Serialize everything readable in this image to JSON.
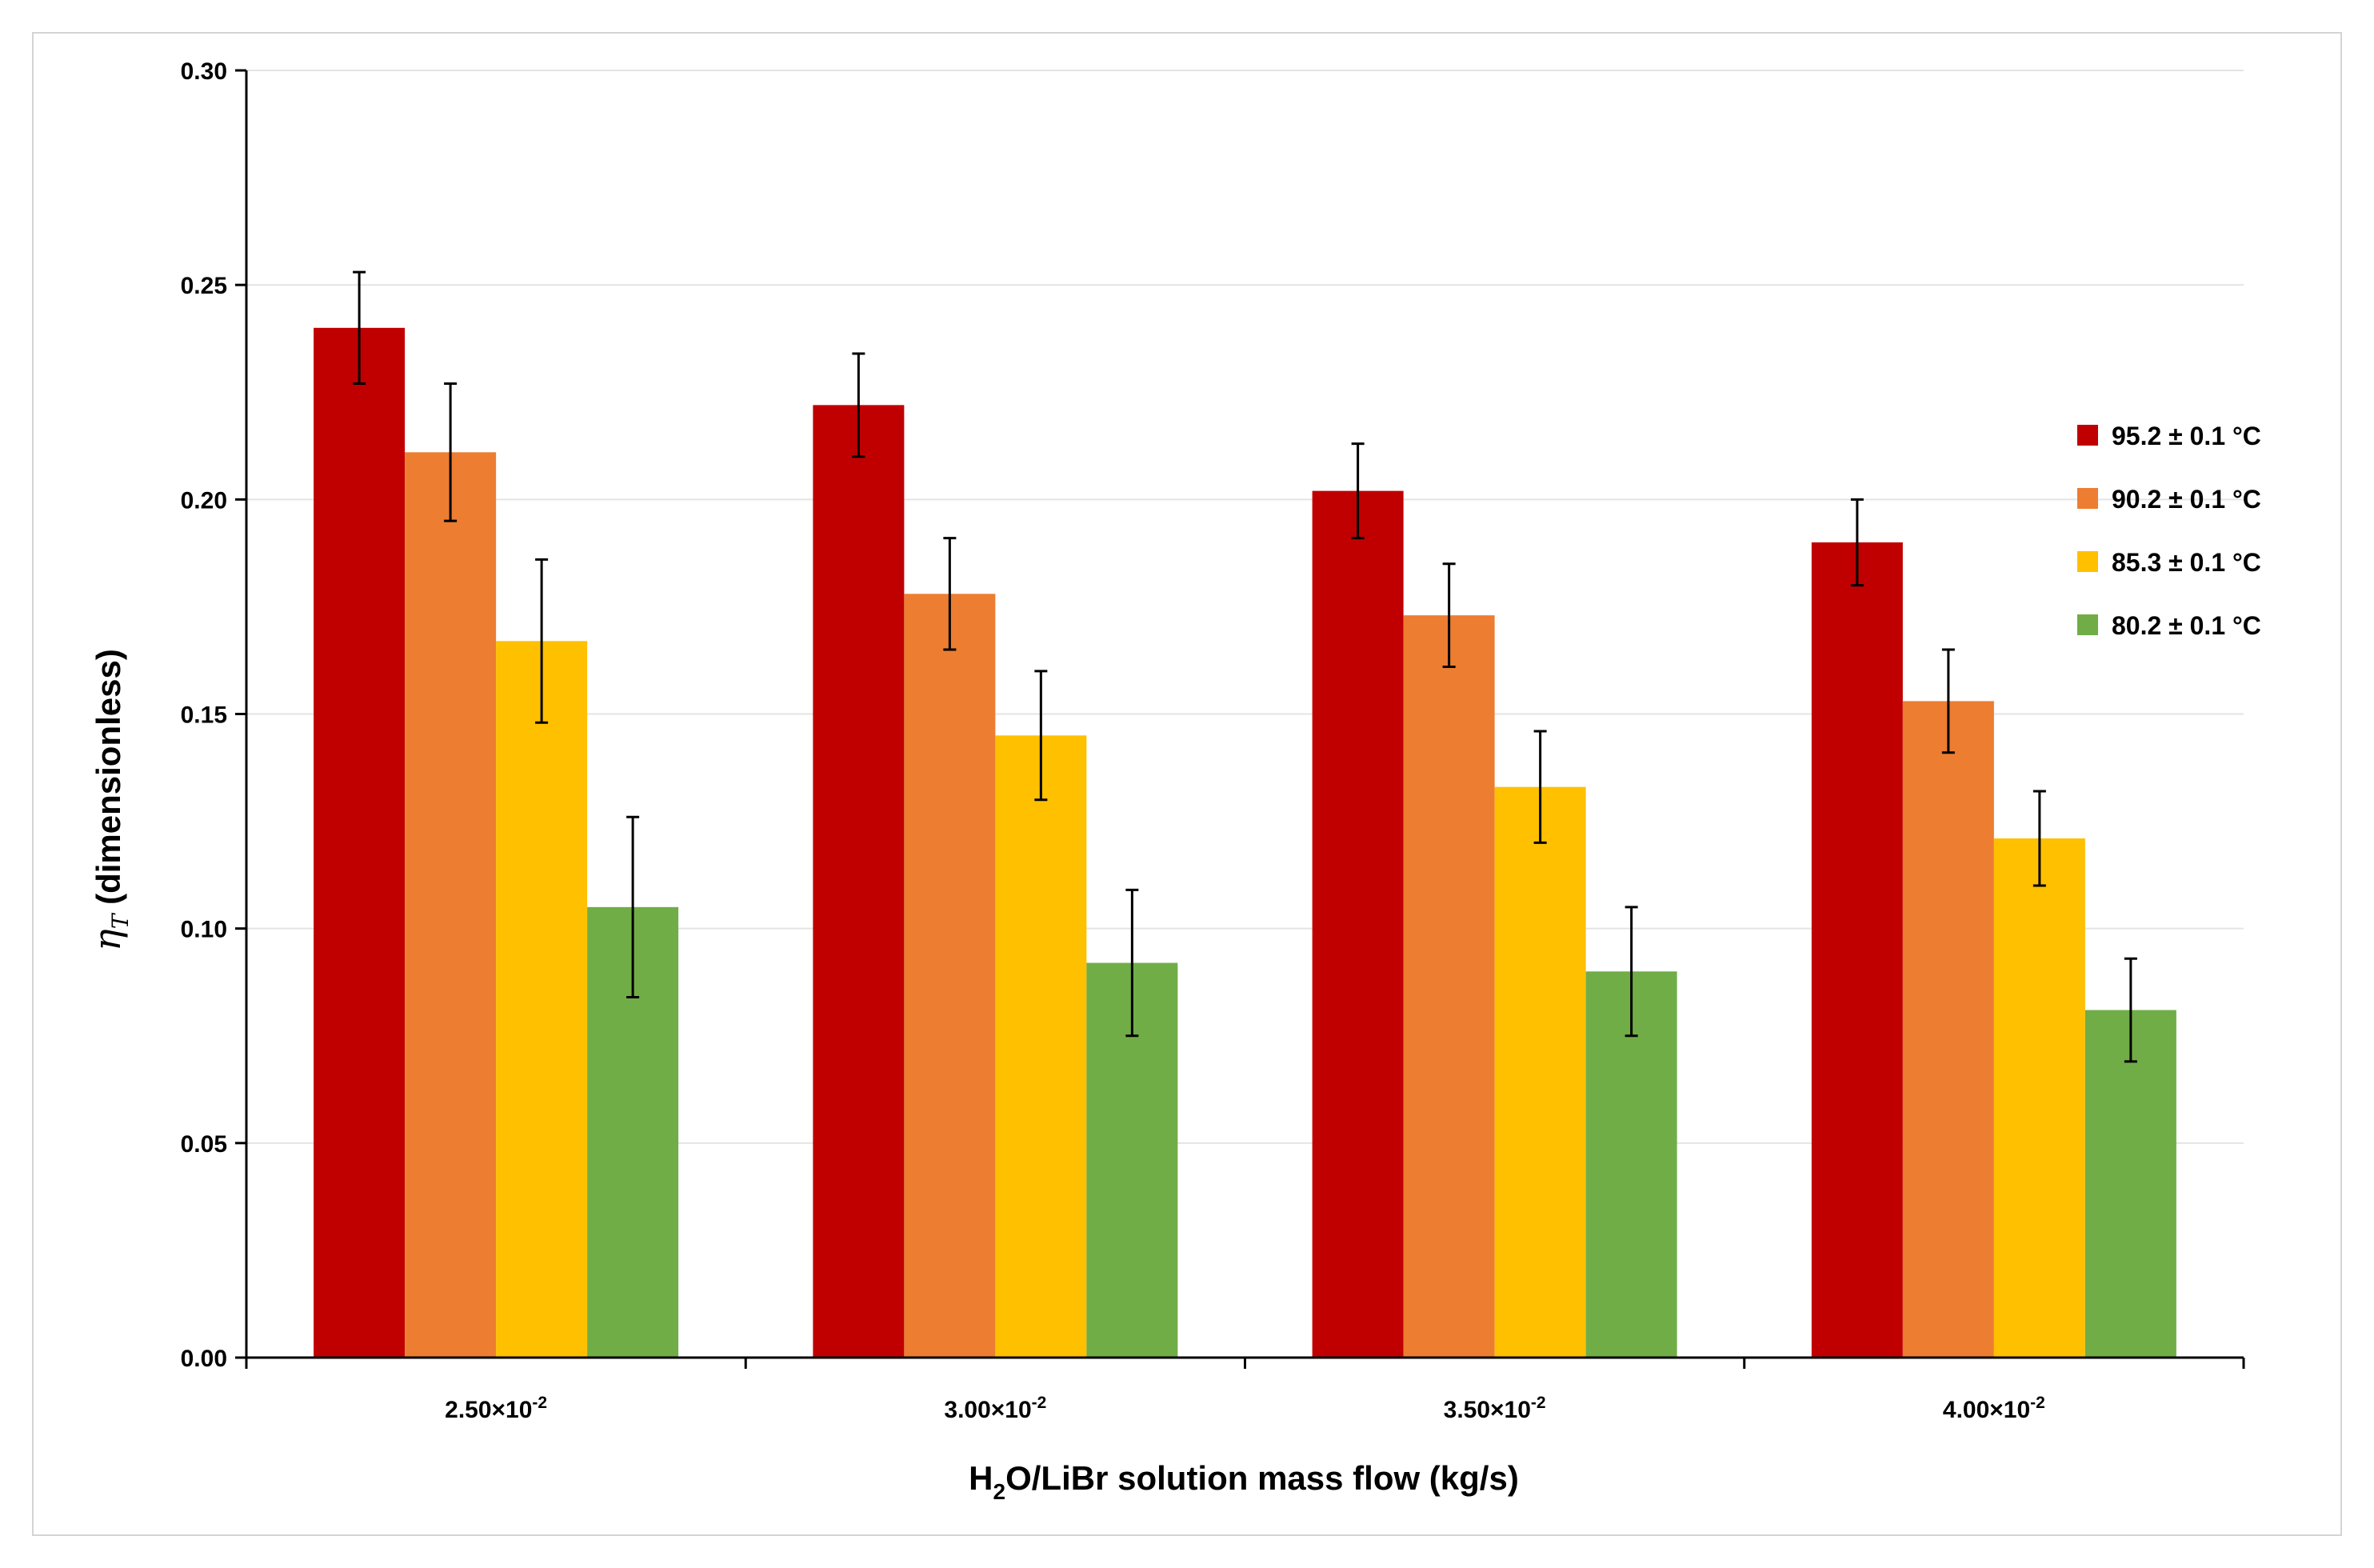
{
  "chart_data": {
    "type": "bar",
    "title": "",
    "xlabel": "H2O/LiBr solution mass flow (kg/s)",
    "xlabel_parts": {
      "h": "H",
      "sub": "2",
      "rest": "O/LiBr solution mass flow (kg/s)"
    },
    "ylabel": "ηT (dimensionless)",
    "ylabel_parts": {
      "eta": "η",
      "sub": "T",
      "rest": " (dimensionless)"
    },
    "ylim": [
      0,
      0.3
    ],
    "yticks": [
      "0.00",
      "0.05",
      "0.10",
      "0.15",
      "0.20",
      "0.25",
      "0.30"
    ],
    "grid": true,
    "legend_position": "right",
    "categories": [
      {
        "mantissa": "2.50×10",
        "exp": "-2"
      },
      {
        "mantissa": "3.00×10",
        "exp": "-2"
      },
      {
        "mantissa": "3.50×10",
        "exp": "-2"
      },
      {
        "mantissa": "4.00×10",
        "exp": "-2"
      }
    ],
    "series": [
      {
        "name": "95.2 ± 0.1 °C",
        "color": "#C00000",
        "values": [
          0.24,
          0.222,
          0.202,
          0.19
        ],
        "errors": [
          0.013,
          0.012,
          0.011,
          0.01
        ]
      },
      {
        "name": "90.2 ± 0.1 °C",
        "color": "#ED7D31",
        "values": [
          0.211,
          0.178,
          0.173,
          0.153
        ],
        "errors": [
          0.016,
          0.013,
          0.012,
          0.012
        ]
      },
      {
        "name": "85.3 ± 0.1 °C",
        "color": "#FFC000",
        "values": [
          0.167,
          0.145,
          0.133,
          0.121
        ],
        "errors": [
          0.019,
          0.015,
          0.013,
          0.011
        ]
      },
      {
        "name": "80.2 ± 0.1 °C",
        "color": "#70AD47",
        "values": [
          0.105,
          0.092,
          0.09,
          0.081
        ],
        "errors": [
          0.021,
          0.017,
          0.015,
          0.012
        ]
      }
    ]
  }
}
